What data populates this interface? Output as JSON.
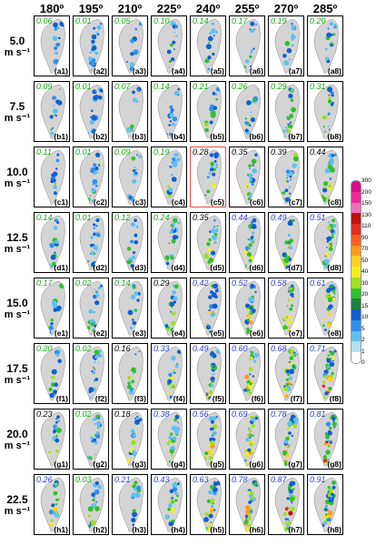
{
  "columns": [
    "180º",
    "195º",
    "210º",
    "225º",
    "240º",
    "255º",
    "270º",
    "285º"
  ],
  "rows": [
    {
      "speed": "5.0",
      "unit": "m s⁻¹",
      "letter": "a",
      "scores": [
        "0.06",
        "0.01",
        "0.05",
        "0.10",
        "0.14",
        "0.17",
        "0.19",
        "0.20"
      ]
    },
    {
      "speed": "7.5",
      "unit": "m s⁻¹",
      "letter": "b",
      "scores": [
        "0.09",
        "0.01",
        "0.07",
        "0.14",
        "0.21",
        "0.26",
        "0.29",
        "0.31"
      ]
    },
    {
      "speed": "10.0",
      "unit": "m s⁻¹",
      "letter": "c",
      "scores": [
        "0.11",
        "0.01",
        "0.09",
        "0.19",
        "0.28",
        "0.35",
        "0.39",
        "0.44"
      ]
    },
    {
      "speed": "12.5",
      "unit": "m s⁻¹",
      "letter": "d",
      "scores": [
        "0.14",
        "0.01",
        "0.12",
        "0.24",
        "0.35",
        "0.44",
        "0.49",
        "0.51"
      ]
    },
    {
      "speed": "15.0",
      "unit": "m s⁻¹",
      "letter": "e",
      "scores": [
        "0.17",
        "0.02",
        "0.14",
        "0.29",
        "0.42",
        "0.52",
        "0.58",
        "0.61"
      ]
    },
    {
      "speed": "17.5",
      "unit": "m s⁻¹",
      "letter": "f",
      "scores": [
        "0.20",
        "0.02",
        "0.16",
        "0.33",
        "0.49",
        "0.60",
        "0.68",
        "0.71"
      ]
    },
    {
      "speed": "20.0",
      "unit": "m s⁻¹",
      "letter": "g",
      "scores": [
        "0.23",
        "0.02",
        "0.18",
        "0.38",
        "0.56",
        "0.69",
        "0.78",
        "0.81"
      ]
    },
    {
      "speed": "22.5",
      "unit": "m s⁻¹",
      "letter": "h",
      "scores": [
        "0.26",
        "0.03",
        "0.21",
        "0.43",
        "0.63",
        "0.78",
        "0.87",
        "0.91"
      ]
    }
  ],
  "score_colors": [
    [
      "#1aa51a",
      "#1aa51a",
      "#1aa51a",
      "#1aa51a",
      "#1aa51a",
      "#1aa51a",
      "#1aa51a",
      "#1aa51a"
    ],
    [
      "#1aa51a",
      "#1aa51a",
      "#1aa51a",
      "#1aa51a",
      "#1aa51a",
      "#1aa51a",
      "#1aa51a",
      "#1aa51a"
    ],
    [
      "#1aa51a",
      "#1aa51a",
      "#1aa51a",
      "#1aa51a",
      "#000000",
      "#000000",
      "#000000",
      "#000000"
    ],
    [
      "#1aa51a",
      "#1aa51a",
      "#1aa51a",
      "#1aa51a",
      "#000000",
      "#2a3fd6",
      "#2a3fd6",
      "#2a3fd6"
    ],
    [
      "#1aa51a",
      "#1aa51a",
      "#1aa51a",
      "#000000",
      "#2a3fd6",
      "#2a3fd6",
      "#2a3fd6",
      "#2a3fd6"
    ],
    [
      "#1aa51a",
      "#1aa51a",
      "#000000",
      "#2a3fd6",
      "#2a3fd6",
      "#2a3fd6",
      "#2a3fd6",
      "#2a3fd6"
    ],
    [
      "#000000",
      "#1aa51a",
      "#000000",
      "#2a3fd6",
      "#2a3fd6",
      "#2a3fd6",
      "#2a3fd6",
      "#2a3fd6"
    ],
    [
      "#2a3fd6",
      "#1aa51a",
      "#2a3fd6",
      "#2a3fd6",
      "#2a3fd6",
      "#2a3fd6",
      "#2a3fd6",
      "#2a3fd6"
    ]
  ],
  "highlighted_panel": "c5",
  "colorbar": {
    "ticks": [
      "300",
      "200",
      "150",
      "130",
      "110",
      "90",
      "70",
      "50",
      "40",
      "30",
      "20",
      "15",
      "10",
      "5",
      "2",
      "1",
      "0"
    ],
    "colors": [
      "#d8108c",
      "#ee2a9a",
      "#f070b8",
      "#c01010",
      "#e03020",
      "#ff6020",
      "#ff9a20",
      "#ffd020",
      "#f0f020",
      "#a0e020",
      "#30c030",
      "#208040",
      "#1060d0",
      "#3090f0",
      "#60c0f0",
      "#b0e0f8",
      "#ffffff"
    ]
  }
}
